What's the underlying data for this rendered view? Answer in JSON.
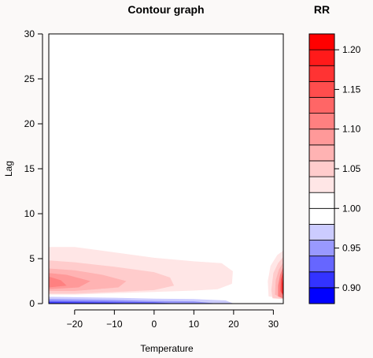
{
  "chart_data": {
    "type": "heatmap",
    "subtype": "filled-contour",
    "title": "Contour graph",
    "xlabel": "Temperature",
    "ylabel": "Lag",
    "xlim": [
      -26.5,
      32.5
    ],
    "ylim": [
      0,
      30
    ],
    "xticks": [
      -20,
      -10,
      0,
      10,
      20,
      30
    ],
    "yticks": [
      0,
      5,
      10,
      15,
      20,
      25,
      30
    ],
    "colorbar": {
      "title": "RR",
      "levels": [
        0.88,
        0.9,
        0.92,
        0.94,
        0.96,
        0.98,
        1.0,
        1.02,
        1.04,
        1.06,
        1.08,
        1.1,
        1.12,
        1.14,
        1.16,
        1.18,
        1.2,
        1.22
      ],
      "colors": [
        "#0000ff",
        "#3333ff",
        "#6666ff",
        "#9999ff",
        "#ccccff",
        "#ffffff",
        "#ffffff",
        "#ffe6e6",
        "#ffcccc",
        "#ffb3b3",
        "#ff9999",
        "#ff8080",
        "#ff6666",
        "#ff4d4d",
        "#ff3333",
        "#ff1a1a",
        "#ff0000"
      ],
      "ticks": [
        0.9,
        0.95,
        1.0,
        1.05,
        1.1,
        1.15,
        1.2
      ],
      "tick_labels": [
        "0.90",
        "0.95",
        "1.00",
        "1.05",
        "1.10",
        "1.15",
        "1.20"
      ]
    },
    "regions": [
      {
        "level": 1.02,
        "color": "#ffe6e6",
        "points": [
          [
            -26.5,
            6.3
          ],
          [
            -20,
            6.3
          ],
          [
            -10,
            5.7
          ],
          [
            0,
            5.1
          ],
          [
            10,
            4.7
          ],
          [
            17,
            4.5
          ],
          [
            19.8,
            3.6
          ],
          [
            19.6,
            2.2
          ],
          [
            16,
            1.6
          ],
          [
            10,
            1.45
          ],
          [
            0,
            1.3
          ],
          [
            -10,
            1.15
          ],
          [
            -20,
            1.0
          ],
          [
            -26.5,
            1.0
          ]
        ]
      },
      {
        "level": 1.04,
        "color": "#ffcccc",
        "points": [
          [
            -26.5,
            4.8
          ],
          [
            -20,
            4.6
          ],
          [
            -10,
            4.1
          ],
          [
            0,
            3.5
          ],
          [
            4,
            2.9
          ],
          [
            5,
            2.0
          ],
          [
            0,
            1.5
          ],
          [
            -10,
            1.3
          ],
          [
            -20,
            1.1
          ],
          [
            -26.5,
            1.1
          ]
        ]
      },
      {
        "level": 1.06,
        "color": "#ffb3b3",
        "points": [
          [
            -26.5,
            3.9
          ],
          [
            -20,
            3.7
          ],
          [
            -13,
            3.2
          ],
          [
            -7,
            2.5
          ],
          [
            -9,
            1.8
          ],
          [
            -20,
            1.4
          ],
          [
            -26.5,
            1.4
          ]
        ]
      },
      {
        "level": 1.08,
        "color": "#ff9999",
        "points": [
          [
            -26.5,
            3.4
          ],
          [
            -22,
            3.2
          ],
          [
            -16,
            2.5
          ],
          [
            -19,
            1.8
          ],
          [
            -26.5,
            1.6
          ]
        ]
      },
      {
        "level": 1.1,
        "color": "#ff8080",
        "points": [
          [
            -26.5,
            3.0
          ],
          [
            -23.5,
            2.6
          ],
          [
            -22,
            2.0
          ],
          [
            -26.5,
            1.8
          ]
        ]
      },
      {
        "level": 1.02,
        "color": "#ffe6e6",
        "points": [
          [
            32.5,
            5.9
          ],
          [
            31,
            5.4
          ],
          [
            29.3,
            4.2
          ],
          [
            28.6,
            2.5
          ],
          [
            28.8,
            0.8
          ],
          [
            32.5,
            0.5
          ]
        ]
      },
      {
        "level": 1.04,
        "color": "#ffcccc",
        "points": [
          [
            32.5,
            5.2
          ],
          [
            31.2,
            4.5
          ],
          [
            30,
            3.4
          ],
          [
            29.5,
            1.5
          ],
          [
            29.8,
            0.6
          ],
          [
            32.5,
            0.5
          ]
        ]
      },
      {
        "level": 1.06,
        "color": "#ffb3b3",
        "points": [
          [
            32.5,
            4.6
          ],
          [
            31.4,
            3.8
          ],
          [
            30.6,
            2.6
          ],
          [
            30.4,
            1.0
          ],
          [
            32.5,
            0.5
          ]
        ]
      },
      {
        "level": 1.1,
        "color": "#ff8080",
        "points": [
          [
            32.5,
            4.1
          ],
          [
            31.7,
            3.2
          ],
          [
            31.2,
            2.0
          ],
          [
            31.2,
            0.8
          ],
          [
            32.5,
            0.6
          ]
        ]
      },
      {
        "level": 1.14,
        "color": "#ff4d4d",
        "points": [
          [
            32.5,
            3.6
          ],
          [
            31.9,
            2.7
          ],
          [
            31.8,
            1.4
          ],
          [
            32.5,
            0.8
          ]
        ]
      },
      {
        "level": 1.18,
        "color": "#ff1a1a",
        "points": [
          [
            32.5,
            3.0
          ],
          [
            32.2,
            2.2
          ],
          [
            32.2,
            1.2
          ],
          [
            32.5,
            1.0
          ]
        ]
      },
      {
        "level": 0.98,
        "color": "#ccccff",
        "points": [
          [
            -26.5,
            0.75
          ],
          [
            -10,
            0.65
          ],
          [
            0,
            0.55
          ],
          [
            10,
            0.5
          ],
          [
            18,
            0.35
          ],
          [
            20,
            0
          ],
          [
            -26.5,
            0
          ]
        ]
      },
      {
        "level": 0.96,
        "color": "#9999ff",
        "points": [
          [
            -26.5,
            0.5
          ],
          [
            -10,
            0.4
          ],
          [
            0,
            0.3
          ],
          [
            10,
            0.25
          ],
          [
            16,
            0
          ],
          [
            -26.5,
            0
          ]
        ]
      },
      {
        "level": 0.94,
        "color": "#6666ff",
        "points": [
          [
            -26.5,
            0.3
          ],
          [
            -10,
            0.22
          ],
          [
            0,
            0.15
          ],
          [
            6,
            0
          ],
          [
            -26.5,
            0
          ]
        ]
      },
      {
        "level": 0.92,
        "color": "#3333ff",
        "points": [
          [
            -26.5,
            0.15
          ],
          [
            -12,
            0.1
          ],
          [
            -4,
            0
          ],
          [
            -26.5,
            0
          ]
        ]
      }
    ]
  }
}
